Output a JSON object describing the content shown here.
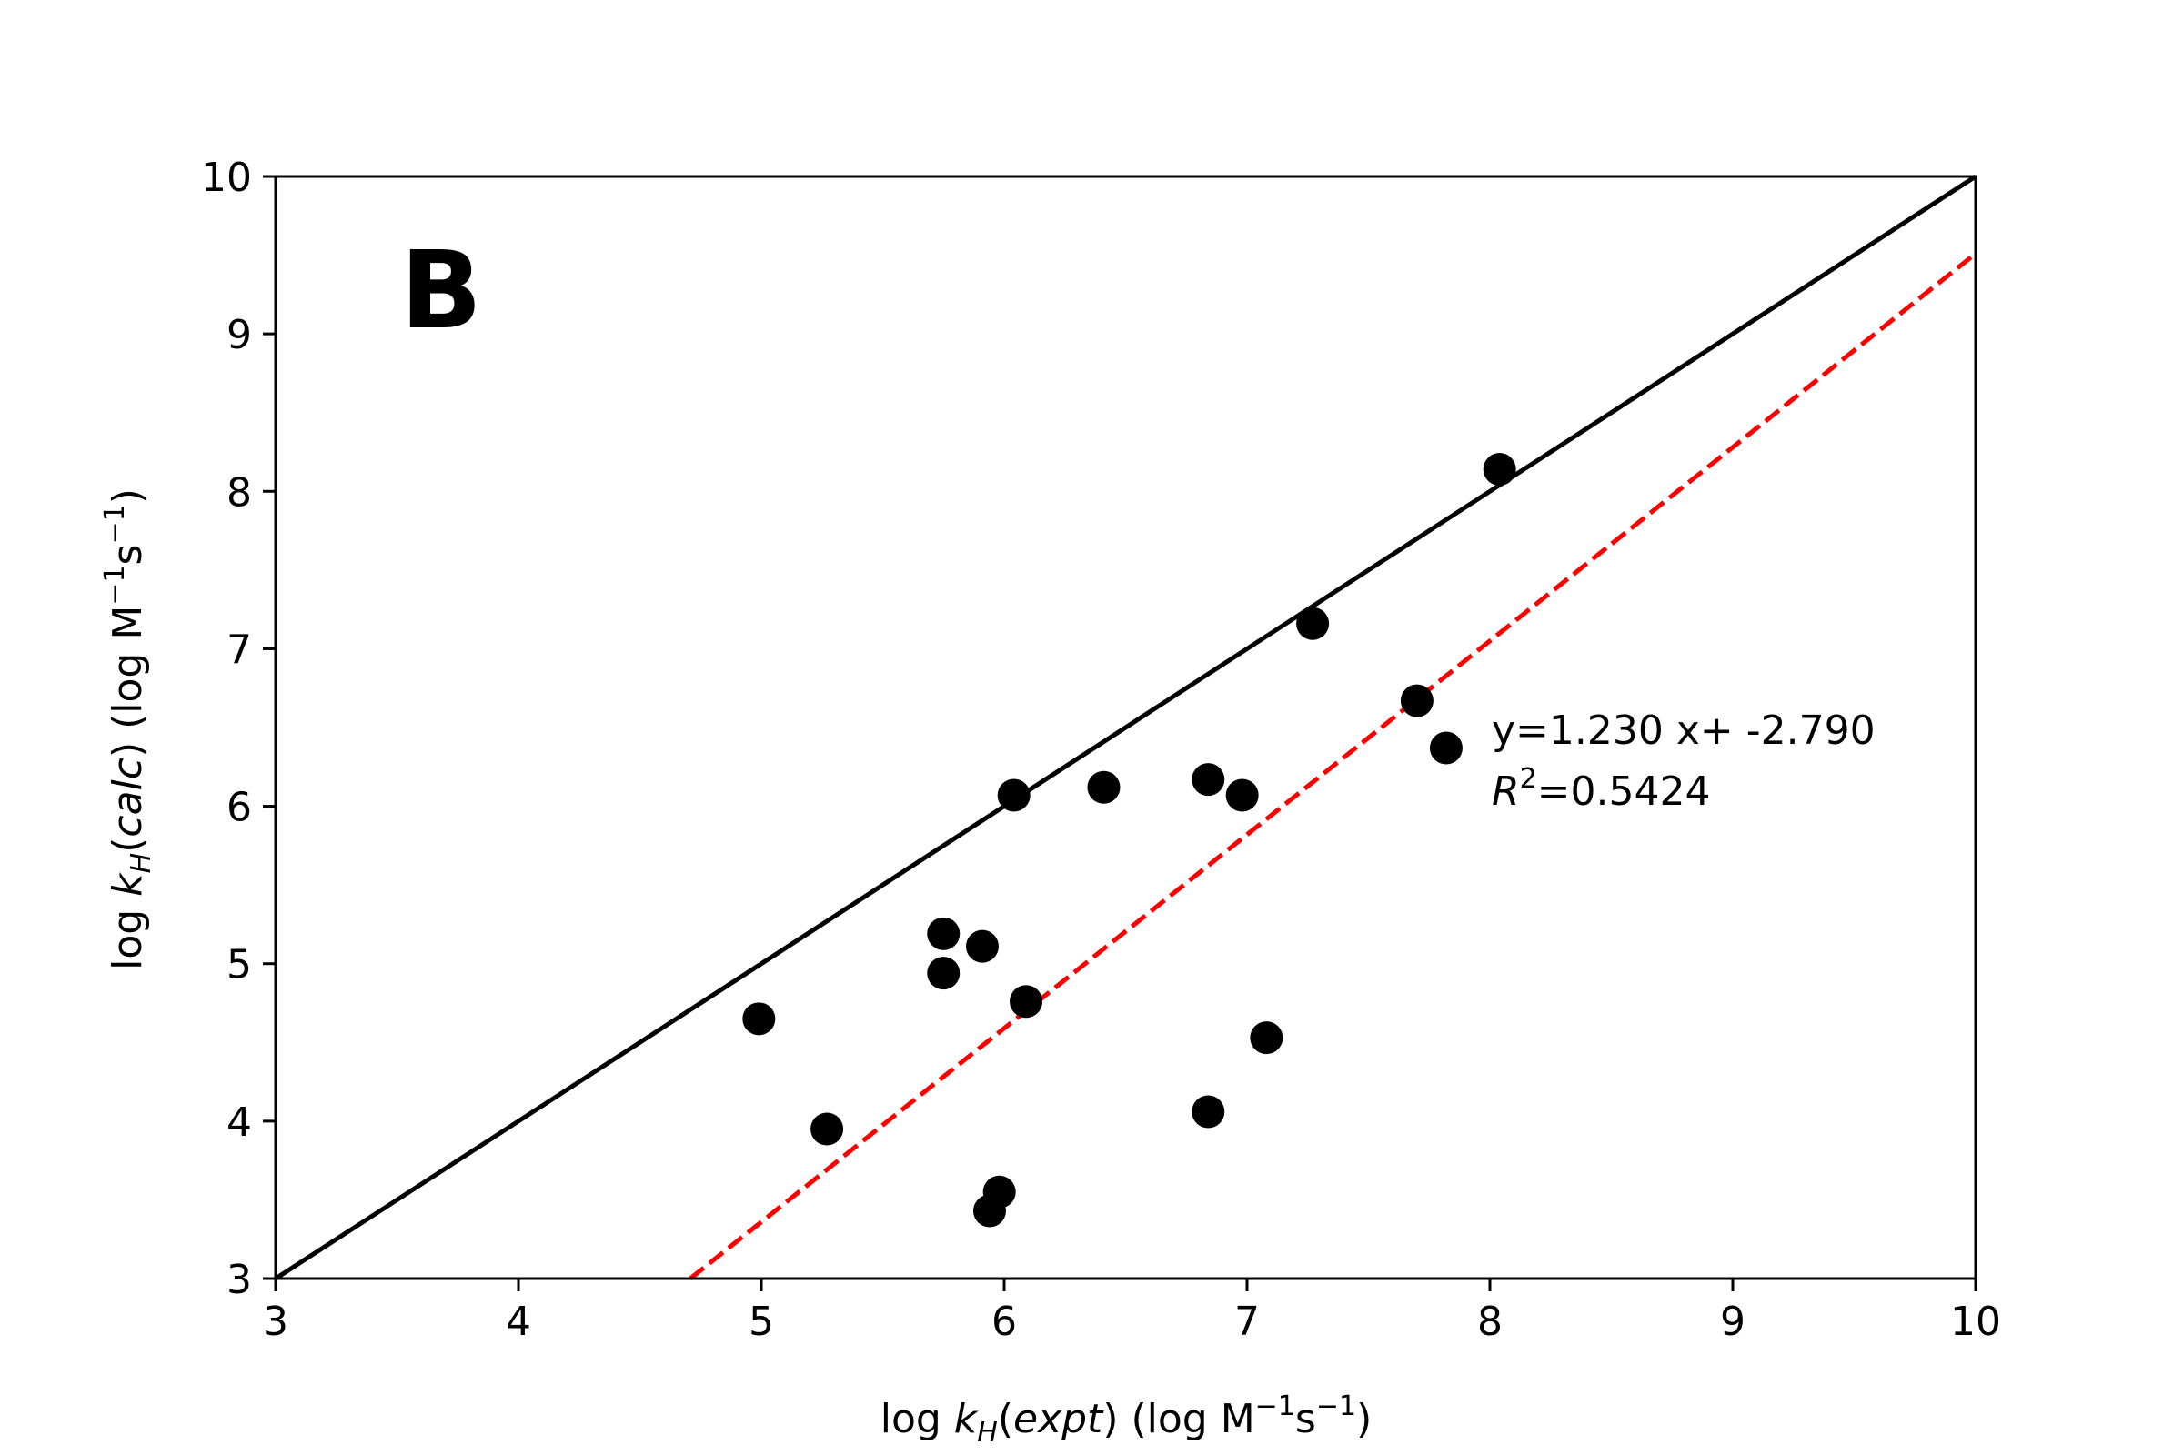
{
  "chart_data": {
    "type": "scatter",
    "panel_label": "B",
    "xlabel": {
      "prefix": "log ",
      "k": "k",
      "sub": "H",
      "paren_open": "(",
      "italic": "expt",
      "paren_close": ")",
      "units_open": " (log M",
      "exp1": "−1",
      "s": "s",
      "exp2": "−1",
      "units_close": ")"
    },
    "ylabel": {
      "prefix": "log ",
      "k": "k",
      "sub": "H",
      "paren_open": "(",
      "italic": "calc",
      "paren_close": ")",
      "units_open": " (log M",
      "exp1": "−1",
      "s": "s",
      "exp2": "−1",
      "units_close": ")"
    },
    "xlim": [
      3,
      10
    ],
    "ylim": [
      3,
      10
    ],
    "xticks": [
      "3",
      "4",
      "5",
      "6",
      "7",
      "8",
      "9",
      "10"
    ],
    "yticks": [
      "3",
      "4",
      "5",
      "6",
      "7",
      "8",
      "9",
      "10"
    ],
    "grid": false,
    "points": [
      {
        "x": 4.99,
        "y": 4.65
      },
      {
        "x": 5.27,
        "y": 3.95
      },
      {
        "x": 5.75,
        "y": 5.19
      },
      {
        "x": 5.75,
        "y": 4.94
      },
      {
        "x": 5.91,
        "y": 5.11
      },
      {
        "x": 5.94,
        "y": 3.43
      },
      {
        "x": 5.98,
        "y": 3.55
      },
      {
        "x": 6.04,
        "y": 6.07
      },
      {
        "x": 6.09,
        "y": 4.76
      },
      {
        "x": 6.41,
        "y": 6.12
      },
      {
        "x": 6.84,
        "y": 6.17
      },
      {
        "x": 6.84,
        "y": 4.06
      },
      {
        "x": 6.98,
        "y": 6.07
      },
      {
        "x": 7.08,
        "y": 4.53
      },
      {
        "x": 7.27,
        "y": 7.16
      },
      {
        "x": 7.7,
        "y": 6.67
      },
      {
        "x": 7.82,
        "y": 6.37
      },
      {
        "x": 8.04,
        "y": 8.14
      }
    ],
    "marker_color": "#000000",
    "identity_line": {
      "x": [
        3,
        10
      ],
      "y": [
        3,
        10
      ],
      "color": "#000000",
      "style": "solid"
    },
    "fit_line": {
      "slope": 1.23,
      "intercept": -2.79,
      "color": "#ff0000",
      "style": "dashed"
    },
    "annotation": {
      "equation": "y=1.230 x+ -2.790",
      "r_symbol": "R",
      "r_exp": "2",
      "r_value": "=0.5424"
    }
  }
}
